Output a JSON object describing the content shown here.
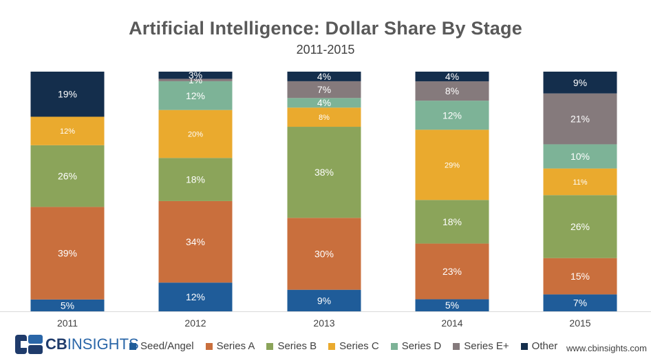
{
  "chart_data": {
    "type": "bar",
    "stacked": true,
    "title": "Artificial Intelligence: Dollar Share By Stage",
    "subtitle": "2011-2015",
    "categories": [
      "2011",
      "2012",
      "2013",
      "2014",
      "2015"
    ],
    "series": [
      {
        "name": "Seed/Angel",
        "color": "#1f5c99",
        "values": [
          5,
          12,
          9,
          5,
          7
        ],
        "labels": [
          "5%",
          "12%",
          "9%",
          "5%",
          "7%"
        ]
      },
      {
        "name": "Series A",
        "color": "#c96f3d",
        "values": [
          39,
          34,
          30,
          23,
          15
        ],
        "labels": [
          "39%",
          "34%",
          "30%",
          "23%",
          "15%"
        ]
      },
      {
        "name": "Series B",
        "color": "#8ba45a",
        "values": [
          26,
          18,
          38,
          18,
          26
        ],
        "labels": [
          "26%",
          "18%",
          "38%",
          "18%",
          "26%"
        ]
      },
      {
        "name": "Series C",
        "color": "#eaaa2e",
        "values": [
          12,
          20,
          8,
          29,
          11
        ],
        "labels": [
          "12%",
          "20%",
          "8%",
          "29%",
          "11%"
        ]
      },
      {
        "name": "Series D",
        "color": "#7db397",
        "values": [
          0,
          12,
          4,
          12,
          10
        ],
        "labels": [
          "",
          "12%",
          "4%",
          "12%",
          "10%"
        ]
      },
      {
        "name": "Series E+",
        "color": "#857a7c",
        "values": [
          0,
          1,
          7,
          8,
          21
        ],
        "labels": [
          "",
          "1%",
          "7%",
          "8%",
          "21%"
        ]
      },
      {
        "name": "Other",
        "color": "#142e4c",
        "values": [
          19,
          3,
          4,
          4,
          9
        ],
        "labels": [
          "19%",
          "3%",
          "4%",
          "4%",
          "9%"
        ]
      }
    ],
    "ylim": [
      0,
      100
    ],
    "grid": false,
    "legend_position": "bottom"
  },
  "footer": {
    "logo_bold": "CB",
    "logo_light": "INSIGHTS",
    "source": "www.cbinsights.com"
  }
}
